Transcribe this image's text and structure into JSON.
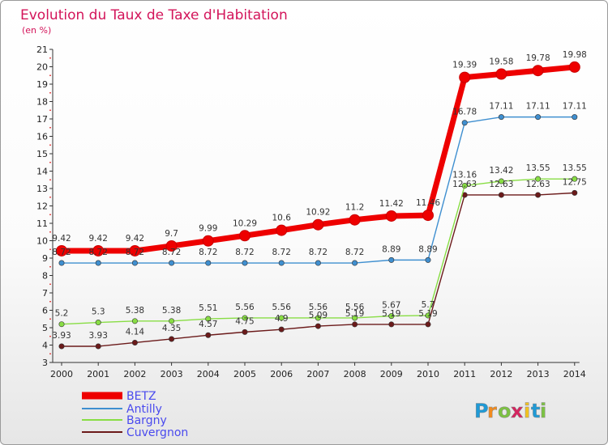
{
  "chart_data": {
    "type": "line",
    "title": "Evolution du Taux de Taxe d'Habitation",
    "subtitle": "(en %)",
    "xlabel": "",
    "ylabel": "",
    "x": [
      "2000",
      "2001",
      "2002",
      "2003",
      "2004",
      "2005",
      "2006",
      "2007",
      "2008",
      "2009",
      "2010",
      "2011",
      "2012",
      "2013",
      "2014"
    ],
    "ylim": [
      3,
      21
    ],
    "yticks": [
      "3",
      "4",
      "5",
      "6",
      "7",
      "8",
      "9",
      "10",
      "11",
      "12",
      "13",
      "14",
      "15",
      "16",
      "17",
      "18",
      "19",
      "20",
      "21"
    ],
    "grid": false,
    "legend": "bottom-left",
    "series": [
      {
        "name": "BETZ",
        "color": "#ee0000",
        "values": [
          9.42,
          9.42,
          9.42,
          9.7,
          9.99,
          10.29,
          10.6,
          10.92,
          11.2,
          11.42,
          11.46,
          19.39,
          19.58,
          19.78,
          19.98
        ],
        "labels": [
          "9.42",
          "9.42",
          "9.42",
          "9.7",
          "9.99",
          "10.29",
          "10.6",
          "10.92",
          "11.2",
          "11.42",
          "11.46",
          "19.39",
          "19.58",
          "19.78",
          "19.98"
        ]
      },
      {
        "name": "Antilly",
        "color": "#3f8fd0",
        "values": [
          8.72,
          8.72,
          8.72,
          8.72,
          8.72,
          8.72,
          8.72,
          8.72,
          8.72,
          8.89,
          8.89,
          16.78,
          17.11,
          17.11,
          17.11
        ],
        "labels": [
          "8.72",
          "8.72",
          "8.72",
          "8.72",
          "8.72",
          "8.72",
          "8.72",
          "8.72",
          "8.72",
          "8.89",
          "8.89",
          "16.78",
          "17.11",
          "17.11",
          "17.11"
        ]
      },
      {
        "name": "Bargny",
        "color": "#88dd44",
        "values": [
          5.2,
          5.3,
          5.38,
          5.38,
          5.51,
          5.56,
          5.56,
          5.56,
          5.56,
          5.67,
          5.7,
          13.16,
          13.42,
          13.55,
          13.55
        ],
        "labels": [
          "5.2",
          "5.3",
          "5.38",
          "5.38",
          "5.51",
          "5.56",
          "5.56",
          "5.56",
          "5.56",
          "5.67",
          "5.7",
          "13.16",
          "13.42",
          "13.55",
          "13.55"
        ]
      },
      {
        "name": "Cuvergnon",
        "color": "#6b1a1a",
        "values": [
          3.93,
          3.93,
          4.14,
          4.35,
          4.57,
          4.75,
          4.9,
          5.09,
          5.19,
          5.19,
          5.19,
          12.63,
          12.63,
          12.63,
          12.75
        ],
        "labels": [
          "3.93",
          "3.93",
          "4.14",
          "4.35",
          "4.57",
          "4.75",
          "4.9",
          "5.09",
          "5.19",
          "5.19",
          "5.19",
          "12.63",
          "12.63",
          "12.63",
          "12.75"
        ]
      }
    ],
    "legend_text_color": "#4a4aee"
  },
  "logo": {
    "text": "Proxiti",
    "colors": [
      "#1f9ad6",
      "#f28b1e",
      "#7cc242",
      "#d6245f",
      "#f2c21e",
      "#1f9ad6",
      "#7cc242"
    ]
  }
}
